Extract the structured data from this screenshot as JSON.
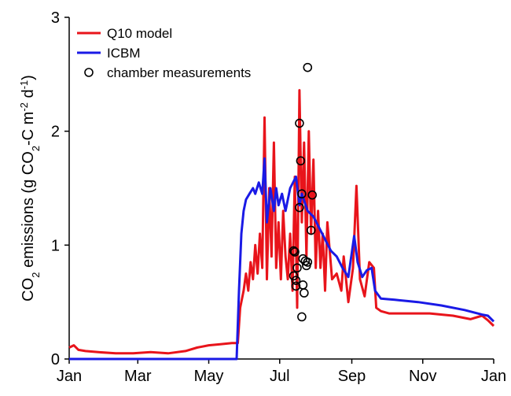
{
  "chart_data": {
    "type": "line",
    "y_label_parts": [
      "CO",
      "2",
      " emissions (g CO",
      "2",
      "-C m",
      "-2",
      " d",
      "-1",
      ")"
    ],
    "xlim": [
      0,
      365
    ],
    "xticks": [
      {
        "value": 0,
        "label": "Jan"
      },
      {
        "value": 59,
        "label": "Mar"
      },
      {
        "value": 120,
        "label": "May"
      },
      {
        "value": 181,
        "label": "Jul"
      },
      {
        "value": 243,
        "label": "Sep"
      },
      {
        "value": 304,
        "label": "Nov"
      },
      {
        "value": 365,
        "label": "Jan"
      }
    ],
    "ylim": [
      0,
      3
    ],
    "yticks": [
      0,
      1,
      2,
      3
    ],
    "legend": "upper left",
    "series": [
      {
        "name": "Q10 model",
        "color": "#e8141b",
        "style": "line",
        "x": [
          0,
          4,
          8,
          14,
          25,
          40,
          55,
          70,
          85,
          100,
          110,
          120,
          130,
          140,
          145,
          147,
          150,
          152,
          154,
          156,
          158,
          160,
          162,
          164,
          166,
          168,
          170,
          172,
          174,
          176,
          178,
          180,
          182,
          184,
          186,
          188,
          190,
          192,
          194,
          196,
          198,
          200,
          202,
          204,
          206,
          208,
          210,
          212,
          214,
          216,
          218,
          220,
          222,
          226,
          230,
          234,
          236,
          240,
          244,
          247,
          250,
          254,
          258,
          262,
          264,
          268,
          275,
          290,
          310,
          330,
          345,
          355,
          360,
          365
        ],
        "values": [
          0.1,
          0.12,
          0.08,
          0.07,
          0.06,
          0.05,
          0.05,
          0.06,
          0.05,
          0.07,
          0.1,
          0.12,
          0.13,
          0.14,
          0.14,
          0.45,
          0.6,
          0.75,
          0.6,
          0.85,
          0.7,
          1.0,
          0.75,
          1.1,
          0.8,
          2.12,
          0.7,
          1.5,
          0.9,
          1.9,
          0.8,
          1.2,
          0.7,
          1.3,
          0.9,
          0.7,
          1.1,
          0.6,
          1.6,
          0.45,
          2.36,
          1.2,
          1.9,
          0.9,
          2.0,
          1.1,
          1.75,
          0.8,
          1.3,
          0.8,
          1.1,
          0.6,
          1.2,
          0.7,
          0.75,
          0.6,
          0.9,
          0.5,
          0.8,
          1.52,
          0.7,
          0.55,
          0.85,
          0.8,
          0.45,
          0.42,
          0.4,
          0.4,
          0.4,
          0.38,
          0.35,
          0.38,
          0.34,
          0.29
        ]
      },
      {
        "name": "ICBM",
        "color": "#1a1ae6",
        "style": "line",
        "x": [
          0,
          144,
          146,
          148,
          150,
          152,
          155,
          158,
          160,
          163,
          166,
          168,
          170,
          173,
          176,
          178,
          180,
          183,
          186,
          190,
          195,
          198,
          200,
          205,
          210,
          215,
          220,
          225,
          230,
          235,
          240,
          245,
          248,
          252,
          256,
          260,
          263,
          268,
          280,
          300,
          320,
          340,
          355,
          360,
          365
        ],
        "values": [
          0,
          0,
          0.6,
          1.1,
          1.3,
          1.4,
          1.45,
          1.5,
          1.45,
          1.55,
          1.45,
          1.76,
          1.2,
          1.5,
          1.3,
          1.5,
          1.35,
          1.45,
          1.3,
          1.5,
          1.6,
          1.35,
          1.45,
          1.3,
          1.25,
          1.15,
          1.05,
          0.95,
          0.9,
          0.8,
          0.72,
          1.08,
          0.85,
          0.72,
          0.78,
          0.8,
          0.6,
          0.53,
          0.52,
          0.5,
          0.47,
          0.43,
          0.39,
          0.38,
          0.33
        ]
      },
      {
        "name": "chamber measurements",
        "color": "#000000",
        "style": "markers",
        "x": [
          205,
          198,
          199,
          200,
          209,
          198,
          208,
          193,
          194,
          201,
          203,
          205,
          204,
          196,
          193,
          195,
          195,
          201,
          202,
          200
        ],
        "values": [
          2.56,
          2.07,
          1.74,
          1.45,
          1.44,
          1.33,
          1.13,
          0.95,
          0.94,
          0.88,
          0.86,
          0.85,
          0.82,
          0.8,
          0.73,
          0.69,
          0.64,
          0.65,
          0.58,
          0.37
        ]
      }
    ]
  }
}
